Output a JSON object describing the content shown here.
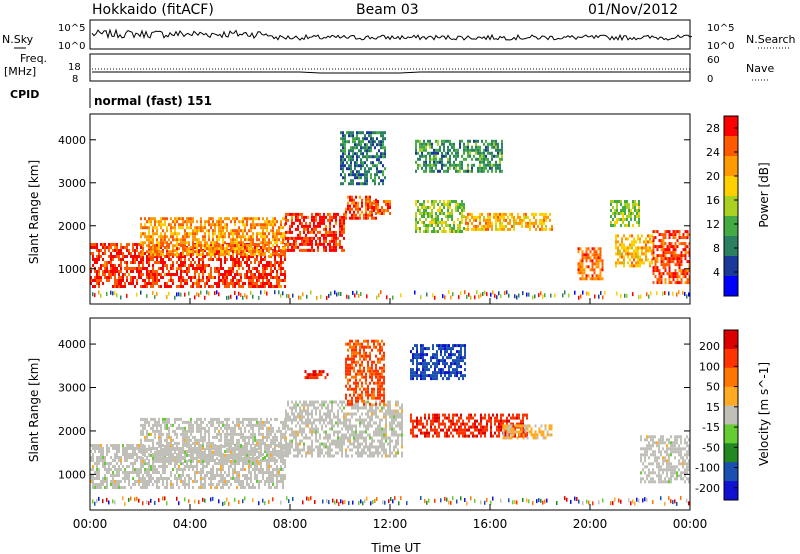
{
  "header": {
    "station": "Hokkaido (fitACF)",
    "beam": "Beam 03",
    "date": "01/Nov/2012"
  },
  "noise_panel": {
    "left_label": "N.Sky",
    "right_label": "N.Search",
    "left_ticks": [
      "10^5",
      "10^0"
    ],
    "right_ticks": [
      "10^5",
      "10^0"
    ],
    "left_marker": "underline",
    "right_marker": "dotted"
  },
  "freq_panel": {
    "left_label_top": "Freq.",
    "left_label_unit": "[MHz]",
    "left_ticks": [
      "18",
      "8"
    ],
    "right_label": "Nave",
    "right_ticks": [
      "60",
      "0"
    ],
    "right_marker": "dotted"
  },
  "cpid_panel": {
    "label": "CPID",
    "text": "normal (fast) 151"
  },
  "colors": {
    "power_scale": [
      "#0000ff",
      "#1a3a9a",
      "#2a8060",
      "#44aa44",
      "#aad022",
      "#ffd000",
      "#ff9a00",
      "#ff5a00",
      "#ff0000"
    ],
    "velocity_scale": [
      "#1010d0",
      "#1a50b0",
      "#228822",
      "#66cc33",
      "#c0c0b8",
      "#ffaa22",
      "#ff7700",
      "#ff3300",
      "#dd0000"
    ]
  },
  "chart_data": [
    {
      "type": "heatmap",
      "title": "",
      "xlabel": "Time UT",
      "ylabel": "Slant Range [km]",
      "x_ticks": [
        "00:00",
        "04:00",
        "08:00",
        "12:00",
        "16:00",
        "20:00",
        "00:00"
      ],
      "xlim_hours": [
        0,
        24
      ],
      "y_ticks": [
        "1000",
        "2000",
        "3000",
        "4000"
      ],
      "ylim": [
        180,
        4600
      ],
      "colorbar": {
        "label": "Power [dB]",
        "ticks": [
          "4",
          "8",
          "12",
          "16",
          "20",
          "24",
          "28"
        ],
        "range": [
          0,
          30
        ]
      },
      "regions": [
        {
          "t": [
            0.0,
            7.8
          ],
          "r": [
            600,
            1600
          ],
          "power": 27
        },
        {
          "t": [
            2.0,
            7.8
          ],
          "r": [
            1300,
            2200
          ],
          "power": 22
        },
        {
          "t": [
            7.8,
            10.2
          ],
          "r": [
            1400,
            2300
          ],
          "power": 27
        },
        {
          "t": [
            10.2,
            11.5
          ],
          "r": [
            2200,
            2700
          ],
          "power": 26
        },
        {
          "t": [
            11.0,
            12.0
          ],
          "r": [
            2300,
            2600
          ],
          "power": 24
        },
        {
          "t": [
            13.0,
            15.0
          ],
          "r": [
            1900,
            2600
          ],
          "power": 14
        },
        {
          "t": [
            15.0,
            18.5
          ],
          "r": [
            1900,
            2300
          ],
          "power": 20
        },
        {
          "t": [
            13.0,
            16.5
          ],
          "r": [
            3300,
            4000
          ],
          "power": 10
        },
        {
          "t": [
            10.0,
            11.8
          ],
          "r": [
            3000,
            4200
          ],
          "power": 8
        },
        {
          "t": [
            19.5,
            20.5
          ],
          "r": [
            800,
            1500
          ],
          "power": 24
        },
        {
          "t": [
            21.0,
            22.5
          ],
          "r": [
            1100,
            1800
          ],
          "power": 20
        },
        {
          "t": [
            22.5,
            24.0
          ],
          "r": [
            700,
            1900
          ],
          "power": 26
        },
        {
          "t": [
            20.8,
            22.0
          ],
          "r": [
            2000,
            2600
          ],
          "power": 14
        }
      ]
    },
    {
      "type": "heatmap",
      "title": "",
      "xlabel": "Time UT",
      "ylabel": "Slant Range [km]",
      "x_ticks": [
        "00:00",
        "04:00",
        "08:00",
        "12:00",
        "16:00",
        "20:00",
        "00:00"
      ],
      "xlim_hours": [
        0,
        24
      ],
      "y_ticks": [
        "1000",
        "2000",
        "3000",
        "4000"
      ],
      "ylim": [
        180,
        4600
      ],
      "colorbar": {
        "label": "Velocity [m s^-1]",
        "ticks": [
          "200",
          "100",
          "50",
          "15",
          "-15",
          "-50",
          "-100",
          "-200"
        ],
        "range": [
          -250,
          250
        ]
      },
      "regions": [
        {
          "t": [
            0.0,
            7.8
          ],
          "r": [
            700,
            1700
          ],
          "velocity": 0
        },
        {
          "t": [
            2.0,
            7.8
          ],
          "r": [
            1300,
            2300
          ],
          "velocity": 0
        },
        {
          "t": [
            7.8,
            12.5
          ],
          "r": [
            1400,
            2700
          ],
          "velocity": 0
        },
        {
          "t": [
            12.8,
            17.5
          ],
          "r": [
            1850,
            2400
          ],
          "velocity": 180
        },
        {
          "t": [
            16.5,
            18.5
          ],
          "r": [
            1850,
            2150
          ],
          "velocity": 40
        },
        {
          "t": [
            8.5,
            9.5
          ],
          "r": [
            3200,
            3400
          ],
          "velocity": 200
        },
        {
          "t": [
            10.2,
            11.8
          ],
          "r": [
            2600,
            4100
          ],
          "velocity": 150
        },
        {
          "t": [
            12.8,
            15.0
          ],
          "r": [
            3200,
            4000
          ],
          "velocity": -180
        },
        {
          "t": [
            22.0,
            24.0
          ],
          "r": [
            800,
            1900
          ],
          "velocity": 0
        }
      ]
    }
  ]
}
